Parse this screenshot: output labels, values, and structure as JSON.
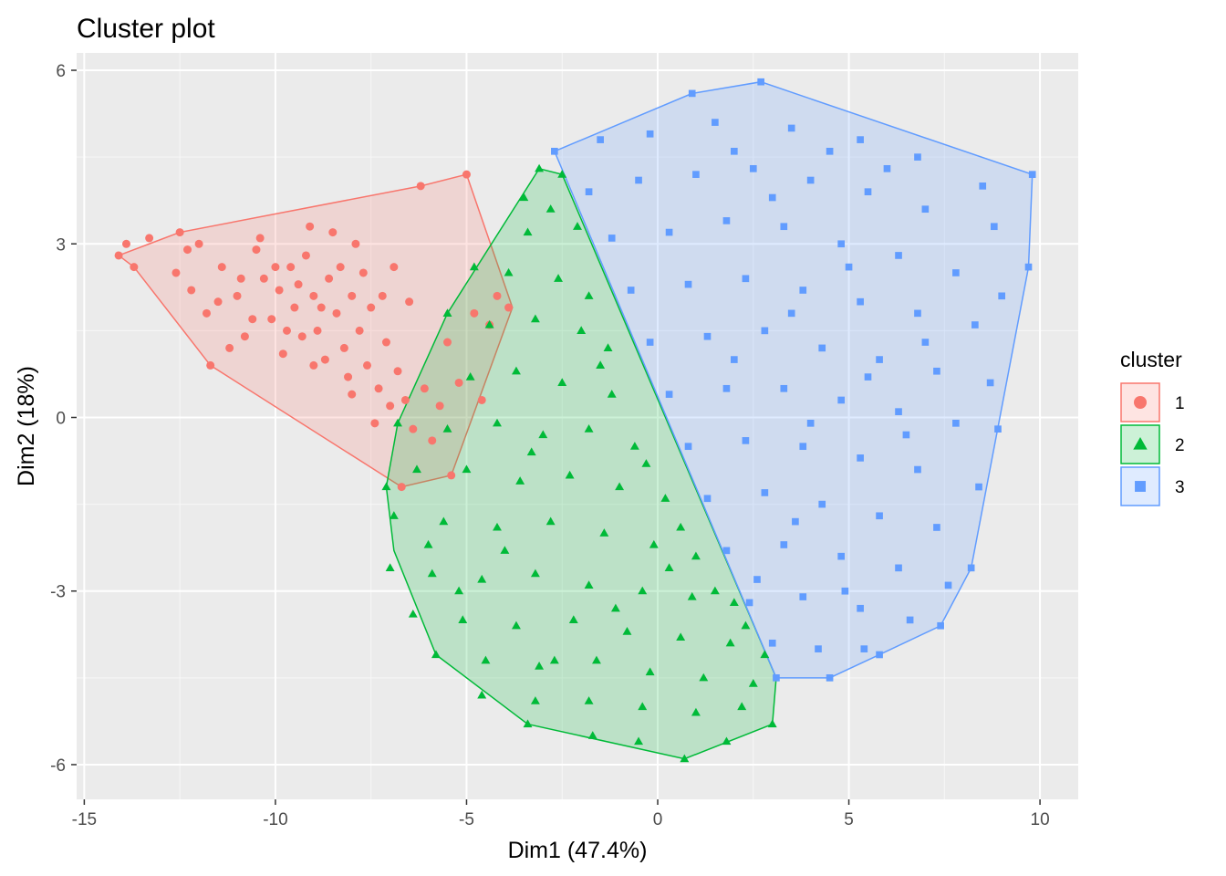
{
  "chart_data": {
    "type": "scatter",
    "title": "Cluster plot",
    "xlabel": "Dim1 (47.4%)",
    "ylabel": "Dim2 (18%)",
    "xlim": [
      -15.2,
      11.0
    ],
    "ylim": [
      -6.6,
      6.3
    ],
    "x_ticks": [
      -15,
      -10,
      -5,
      0,
      5,
      10
    ],
    "x_tick_labels": [
      "-15",
      "-10",
      "-5",
      "0",
      "5",
      "10"
    ],
    "y_ticks": [
      -6,
      -3,
      0,
      3,
      6
    ],
    "y_tick_labels": [
      "-6",
      "-3",
      "0",
      "3",
      "6"
    ],
    "grid": true,
    "background": "#ebebeb",
    "legend": {
      "title": "cluster",
      "position": "right"
    },
    "series": [
      {
        "name": "1",
        "color": "#f8766d",
        "marker": "circle",
        "hull": [
          [
            -14.1,
            2.8
          ],
          [
            -13.7,
            2.6
          ],
          [
            -11.7,
            0.9
          ],
          [
            -6.7,
            -1.2
          ],
          [
            -5.4,
            -1.0
          ],
          [
            -3.8,
            1.9
          ],
          [
            -5.0,
            4.2
          ],
          [
            -6.2,
            4.0
          ],
          [
            -12.5,
            3.2
          ],
          [
            -13.3,
            3.0
          ]
        ],
        "points": [
          [
            -14.1,
            2.8
          ],
          [
            -13.7,
            2.6
          ],
          [
            -13.9,
            3.0
          ],
          [
            -13.3,
            3.1
          ],
          [
            -12.5,
            3.2
          ],
          [
            -12.3,
            2.9
          ],
          [
            -11.7,
            0.9
          ],
          [
            -12.2,
            2.2
          ],
          [
            -11.8,
            1.8
          ],
          [
            -11.4,
            2.6
          ],
          [
            -11.0,
            2.1
          ],
          [
            -10.8,
            1.4
          ],
          [
            -10.5,
            2.9
          ],
          [
            -10.3,
            2.4
          ],
          [
            -10.1,
            1.7
          ],
          [
            -9.9,
            2.2
          ],
          [
            -9.8,
            1.1
          ],
          [
            -9.6,
            2.6
          ],
          [
            -9.5,
            1.9
          ],
          [
            -9.3,
            1.4
          ],
          [
            -9.2,
            2.8
          ],
          [
            -9.0,
            2.1
          ],
          [
            -8.9,
            1.5
          ],
          [
            -8.7,
            1.0
          ],
          [
            -8.6,
            2.4
          ],
          [
            -8.4,
            1.8
          ],
          [
            -8.2,
            1.2
          ],
          [
            -8.1,
            0.7
          ],
          [
            -8.0,
            2.1
          ],
          [
            -7.8,
            1.5
          ],
          [
            -7.6,
            0.9
          ],
          [
            -7.5,
            1.9
          ],
          [
            -7.3,
            0.5
          ],
          [
            -7.1,
            1.3
          ],
          [
            -7.0,
            0.2
          ],
          [
            -6.8,
            0.8
          ],
          [
            -6.7,
            -1.2
          ],
          [
            -6.6,
            0.3
          ],
          [
            -6.4,
            -0.2
          ],
          [
            -6.2,
            4.0
          ],
          [
            -6.1,
            0.5
          ],
          [
            -5.9,
            -0.4
          ],
          [
            -5.7,
            0.2
          ],
          [
            -5.5,
            1.3
          ],
          [
            -5.4,
            -1.0
          ],
          [
            -5.2,
            0.6
          ],
          [
            -5.0,
            4.2
          ],
          [
            -4.8,
            1.8
          ],
          [
            -4.6,
            0.3
          ],
          [
            -4.4,
            1.6
          ],
          [
            -4.2,
            2.1
          ],
          [
            -3.9,
            1.9
          ],
          [
            -10.9,
            2.4
          ],
          [
            -10.0,
            2.6
          ],
          [
            -9.4,
            2.3
          ],
          [
            -8.8,
            1.9
          ],
          [
            -10.6,
            1.7
          ],
          [
            -9.7,
            1.5
          ],
          [
            -8.3,
            2.6
          ],
          [
            -7.7,
            2.5
          ],
          [
            -11.2,
            1.2
          ],
          [
            -10.4,
            3.1
          ],
          [
            -9.1,
            3.3
          ],
          [
            -8.5,
            3.2
          ],
          [
            -7.9,
            3.0
          ],
          [
            -12.6,
            2.5
          ],
          [
            -12.0,
            3.0
          ],
          [
            -7.2,
            2.1
          ],
          [
            -6.9,
            2.6
          ],
          [
            -6.5,
            2.0
          ],
          [
            -11.5,
            2.0
          ],
          [
            -9.0,
            0.9
          ],
          [
            -8.0,
            0.4
          ],
          [
            -7.4,
            -0.1
          ]
        ]
      },
      {
        "name": "2",
        "color": "#00ba38",
        "marker": "triangle",
        "hull": [
          [
            -3.1,
            4.3
          ],
          [
            -2.5,
            4.2
          ],
          [
            3.1,
            -4.5
          ],
          [
            3.0,
            -5.3
          ],
          [
            0.7,
            -5.9
          ],
          [
            -3.4,
            -5.3
          ],
          [
            -5.8,
            -4.1
          ],
          [
            -6.9,
            -2.3
          ],
          [
            -7.1,
            -1.2
          ],
          [
            -6.8,
            -0.1
          ],
          [
            -5.5,
            1.8
          ]
        ],
        "points": [
          [
            -3.1,
            4.3
          ],
          [
            -2.5,
            4.2
          ],
          [
            -2.8,
            3.6
          ],
          [
            -3.4,
            3.2
          ],
          [
            -2.1,
            3.3
          ],
          [
            -3.9,
            2.5
          ],
          [
            -2.6,
            2.4
          ],
          [
            -1.8,
            2.1
          ],
          [
            -4.4,
            1.6
          ],
          [
            -3.2,
            1.7
          ],
          [
            -2.0,
            1.5
          ],
          [
            -1.3,
            1.2
          ],
          [
            -4.9,
            0.7
          ],
          [
            -3.7,
            0.8
          ],
          [
            -2.5,
            0.6
          ],
          [
            -1.2,
            0.4
          ],
          [
            -5.5,
            -0.2
          ],
          [
            -4.2,
            -0.1
          ],
          [
            -3.0,
            -0.3
          ],
          [
            -1.8,
            -0.2
          ],
          [
            -0.6,
            -0.5
          ],
          [
            -6.3,
            -0.9
          ],
          [
            -5.0,
            -0.9
          ],
          [
            -3.6,
            -1.1
          ],
          [
            -2.3,
            -1.0
          ],
          [
            -1.0,
            -1.2
          ],
          [
            0.2,
            -1.4
          ],
          [
            -6.9,
            -1.7
          ],
          [
            -5.6,
            -1.8
          ],
          [
            -4.2,
            -1.9
          ],
          [
            -2.8,
            -1.8
          ],
          [
            -1.4,
            -2.0
          ],
          [
            -0.1,
            -2.2
          ],
          [
            1.0,
            -2.4
          ],
          [
            -7.0,
            -2.6
          ],
          [
            -5.9,
            -2.7
          ],
          [
            -4.6,
            -2.8
          ],
          [
            -3.2,
            -2.7
          ],
          [
            -1.8,
            -2.9
          ],
          [
            -0.4,
            -3.0
          ],
          [
            0.9,
            -3.1
          ],
          [
            2.0,
            -3.2
          ],
          [
            -6.4,
            -3.4
          ],
          [
            -5.1,
            -3.5
          ],
          [
            -3.7,
            -3.6
          ],
          [
            -2.2,
            -3.5
          ],
          [
            -0.8,
            -3.7
          ],
          [
            0.6,
            -3.8
          ],
          [
            1.9,
            -3.9
          ],
          [
            2.8,
            -4.1
          ],
          [
            -5.8,
            -4.1
          ],
          [
            -4.5,
            -4.2
          ],
          [
            -3.1,
            -4.3
          ],
          [
            -1.6,
            -4.2
          ],
          [
            -0.2,
            -4.4
          ],
          [
            1.2,
            -4.5
          ],
          [
            2.5,
            -4.6
          ],
          [
            -4.6,
            -4.8
          ],
          [
            -3.2,
            -4.9
          ],
          [
            -1.8,
            -4.9
          ],
          [
            -0.4,
            -5.0
          ],
          [
            1.0,
            -5.1
          ],
          [
            2.2,
            -5.0
          ],
          [
            3.0,
            -5.3
          ],
          [
            -3.4,
            -5.3
          ],
          [
            -1.7,
            -5.5
          ],
          [
            -0.5,
            -5.6
          ],
          [
            0.7,
            -5.9
          ],
          [
            1.8,
            -5.6
          ],
          [
            -7.1,
            -1.2
          ],
          [
            -6.8,
            -0.1
          ],
          [
            -5.5,
            1.8
          ],
          [
            -4.8,
            2.6
          ],
          [
            -3.5,
            3.8
          ],
          [
            -1.5,
            0.9
          ],
          [
            -0.3,
            -0.8
          ],
          [
            0.6,
            -1.9
          ],
          [
            1.5,
            -3.0
          ],
          [
            2.3,
            -3.6
          ],
          [
            -2.7,
            -4.2
          ],
          [
            -1.1,
            -3.3
          ],
          [
            0.3,
            -2.6
          ],
          [
            -4.0,
            -2.3
          ],
          [
            -5.2,
            -3.0
          ],
          [
            -6.0,
            -2.2
          ],
          [
            -3.3,
            -0.6
          ]
        ]
      },
      {
        "name": "3",
        "color": "#619cff",
        "marker": "square",
        "hull": [
          [
            -2.7,
            4.6
          ],
          [
            0.9,
            5.6
          ],
          [
            2.7,
            5.8
          ],
          [
            9.8,
            4.2
          ],
          [
            9.7,
            2.6
          ],
          [
            8.2,
            -2.6
          ],
          [
            7.4,
            -3.6
          ],
          [
            5.8,
            -4.1
          ],
          [
            4.5,
            -4.5
          ],
          [
            3.1,
            -4.5
          ],
          [
            -2.7,
            4.6
          ]
        ],
        "points": [
          [
            -2.7,
            4.6
          ],
          [
            0.9,
            5.6
          ],
          [
            2.7,
            5.8
          ],
          [
            9.8,
            4.2
          ],
          [
            9.7,
            2.6
          ],
          [
            8.2,
            -2.6
          ],
          [
            7.4,
            -3.6
          ],
          [
            5.8,
            -4.1
          ],
          [
            4.5,
            -4.5
          ],
          [
            3.1,
            -4.5
          ],
          [
            -1.5,
            4.8
          ],
          [
            -0.2,
            4.9
          ],
          [
            1.5,
            5.1
          ],
          [
            3.5,
            5.0
          ],
          [
            5.3,
            4.8
          ],
          [
            6.8,
            4.5
          ],
          [
            8.5,
            4.0
          ],
          [
            -1.8,
            3.9
          ],
          [
            -0.5,
            4.1
          ],
          [
            1.0,
            4.2
          ],
          [
            2.5,
            4.3
          ],
          [
            4.0,
            4.1
          ],
          [
            5.5,
            3.9
          ],
          [
            7.0,
            3.6
          ],
          [
            8.8,
            3.3
          ],
          [
            -1.2,
            3.1
          ],
          [
            0.3,
            3.2
          ],
          [
            1.8,
            3.4
          ],
          [
            3.3,
            3.3
          ],
          [
            4.8,
            3.0
          ],
          [
            6.3,
            2.8
          ],
          [
            7.8,
            2.5
          ],
          [
            -0.7,
            2.2
          ],
          [
            0.8,
            2.3
          ],
          [
            2.3,
            2.4
          ],
          [
            3.8,
            2.2
          ],
          [
            5.3,
            2.0
          ],
          [
            6.8,
            1.8
          ],
          [
            8.3,
            1.6
          ],
          [
            -0.2,
            1.3
          ],
          [
            1.3,
            1.4
          ],
          [
            2.8,
            1.5
          ],
          [
            4.3,
            1.2
          ],
          [
            5.8,
            1.0
          ],
          [
            7.3,
            0.8
          ],
          [
            8.7,
            0.6
          ],
          [
            0.3,
            0.4
          ],
          [
            1.8,
            0.5
          ],
          [
            3.3,
            0.5
          ],
          [
            4.8,
            0.3
          ],
          [
            6.3,
            0.1
          ],
          [
            7.8,
            -0.1
          ],
          [
            0.8,
            -0.5
          ],
          [
            2.3,
            -0.4
          ],
          [
            3.8,
            -0.5
          ],
          [
            5.3,
            -0.7
          ],
          [
            6.8,
            -0.9
          ],
          [
            8.4,
            -1.2
          ],
          [
            1.3,
            -1.4
          ],
          [
            2.8,
            -1.3
          ],
          [
            4.3,
            -1.5
          ],
          [
            5.8,
            -1.7
          ],
          [
            7.3,
            -1.9
          ],
          [
            1.8,
            -2.3
          ],
          [
            3.3,
            -2.2
          ],
          [
            4.8,
            -2.4
          ],
          [
            6.3,
            -2.6
          ],
          [
            7.6,
            -2.9
          ],
          [
            2.4,
            -3.2
          ],
          [
            3.8,
            -3.1
          ],
          [
            5.3,
            -3.3
          ],
          [
            6.6,
            -3.5
          ],
          [
            3.0,
            -3.9
          ],
          [
            4.2,
            -4.0
          ],
          [
            5.4,
            -4.0
          ],
          [
            9.0,
            2.1
          ],
          [
            8.9,
            -0.2
          ],
          [
            2.0,
            4.6
          ],
          [
            3.0,
            3.8
          ],
          [
            4.5,
            4.6
          ],
          [
            6.0,
            4.3
          ],
          [
            5.0,
            2.6
          ],
          [
            3.5,
            1.8
          ],
          [
            2.0,
            1.0
          ],
          [
            4.0,
            -0.1
          ],
          [
            5.5,
            0.7
          ],
          [
            6.5,
            -0.3
          ],
          [
            7.0,
            1.3
          ],
          [
            3.6,
            -1.8
          ],
          [
            4.9,
            -3.0
          ],
          [
            2.6,
            -2.8
          ]
        ]
      }
    ]
  }
}
